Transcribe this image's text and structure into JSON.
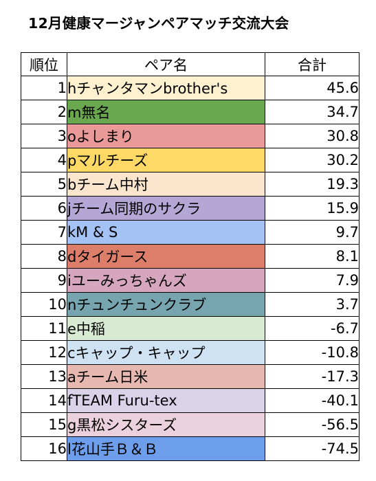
{
  "title": "12月健康マージャンペアマッチ交流大会",
  "table": {
    "headers": {
      "rank": "順位",
      "name": "ペア名",
      "total": "合計"
    },
    "rows": [
      {
        "rank": "1",
        "name": "hチャンタマンbrother's",
        "total": "45.6",
        "color": "#FDF1CF"
      },
      {
        "rank": "2",
        "name": "m無名",
        "total": "34.7",
        "color": "#6AA84F"
      },
      {
        "rank": "3",
        "name": "oよしまり",
        "total": "30.8",
        "color": "#EA9999"
      },
      {
        "rank": "4",
        "name": "pマルチーズ",
        "total": "30.2",
        "color": "#FFD966"
      },
      {
        "rank": "5",
        "name": "bチーム中村",
        "total": "19.3",
        "color": "#FCE5CD"
      },
      {
        "rank": "6",
        "name": "jチーム同期のサクラ",
        "total": "15.9",
        "color": "#B4A7D6"
      },
      {
        "rank": "7",
        "name": "kM & S",
        "total": "9.7",
        "color": "#A4C2F4"
      },
      {
        "rank": "8",
        "name": "dタイガース",
        "total": "8.1",
        "color": "#DD7E6B"
      },
      {
        "rank": "9",
        "name": "iユーみっちゃんズ",
        "total": "7.9",
        "color": "#D5A6BD"
      },
      {
        "rank": "10",
        "name": "nチュンチュンクラブ",
        "total": "3.7",
        "color": "#76A5AF"
      },
      {
        "rank": "11",
        "name": "e中稲",
        "total": "-6.7",
        "color": "#D9EAD3"
      },
      {
        "rank": "12",
        "name": "cキャップ・キャップ",
        "total": "-10.8",
        "color": "#CFE2F3"
      },
      {
        "rank": "13",
        "name": "aチーム日米",
        "total": "-17.3",
        "color": "#E6B8AF"
      },
      {
        "rank": "14",
        "name": "fTEAM Furu-tex",
        "total": "-40.1",
        "color": "#D9D2E9"
      },
      {
        "rank": "15",
        "name": "g黒松シスターズ",
        "total": "-56.5",
        "color": "#EAD1DC"
      },
      {
        "rank": "16",
        "name": "l花山手Ｂ＆Ｂ",
        "total": "-74.5",
        "color": "#6D9EEB"
      }
    ]
  }
}
